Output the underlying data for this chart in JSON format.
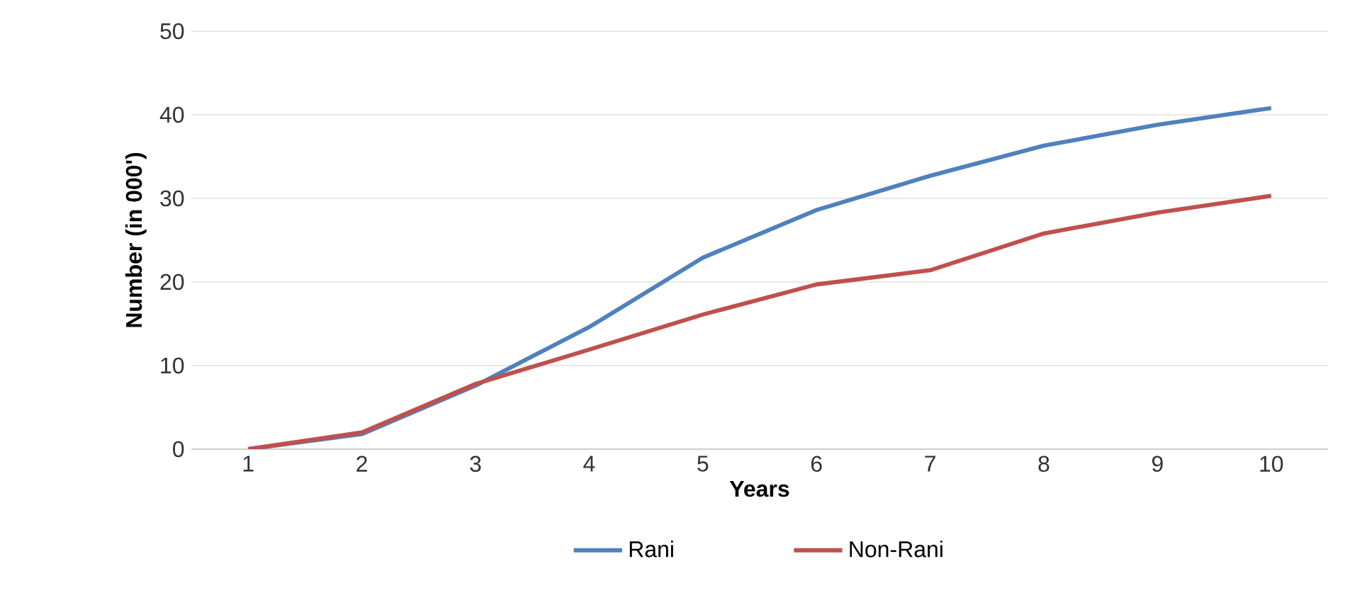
{
  "chart_data": {
    "type": "line",
    "xlabel": "Years",
    "ylabel": "Number (in 000')",
    "categories": [
      "1",
      "2",
      "3",
      "4",
      "5",
      "6",
      "7",
      "8",
      "9",
      "10"
    ],
    "series": [
      {
        "name": "Rani",
        "color": "#4f81bd",
        "values": [
          0,
          1.8,
          7.6,
          14.6,
          22.9,
          28.6,
          32.7,
          36.3,
          38.8,
          40.8
        ]
      },
      {
        "name": "Non-Rani",
        "color": "#c0504d",
        "values": [
          0,
          2,
          7.8,
          11.9,
          16.1,
          19.7,
          21.4,
          25.8,
          28.3,
          30.3
        ]
      }
    ],
    "ylim": [
      0,
      50
    ],
    "yticks": [
      0,
      10,
      20,
      30,
      40,
      50
    ],
    "grid": "y",
    "legend": "bottom",
    "marker": "none",
    "line_style": "solid"
  }
}
